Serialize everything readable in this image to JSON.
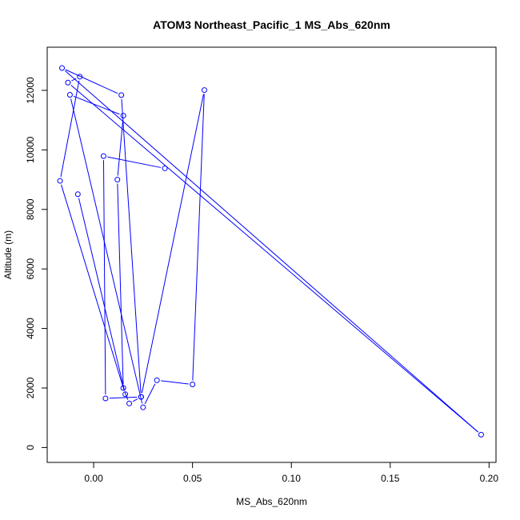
{
  "chart_data": {
    "type": "line",
    "title": "ATOM3 Northeast_Pacific_1 MS_Abs_620nm",
    "xlabel": "MS_Abs_620nm",
    "ylabel": "Altitude (m)",
    "xlim": [
      -0.0235,
      0.2035
    ],
    "ylim": [
      -500,
      13450
    ],
    "x_ticks": [
      0.0,
      0.05,
      0.1,
      0.15,
      0.2
    ],
    "x_tick_labels": [
      "0.00",
      "0.05",
      "0.10",
      "0.15",
      "0.20"
    ],
    "y_ticks": [
      0,
      2000,
      4000,
      6000,
      8000,
      10000,
      12000
    ],
    "y_tick_labels": [
      "0",
      "2000",
      "4000",
      "6000",
      "8000",
      "10000",
      "12000"
    ],
    "series": [
      {
        "color": "#0000ff",
        "marker": "open-circle",
        "x": [
          -0.008,
          0.016,
          -0.017,
          -0.007,
          -0.013,
          0.196,
          -0.016,
          0.014,
          0.024,
          0.018,
          0.015,
          0.012,
          0.015,
          -0.012,
          0.025,
          0.032,
          0.05,
          0.056,
          0.024,
          0.006,
          0.005,
          0.036
        ],
        "y": [
          8510,
          1790,
          8960,
          12460,
          12260,
          430,
          12750,
          11840,
          1700,
          1480,
          2000,
          9000,
          11150,
          11850,
          1350,
          2260,
          2120,
          12010,
          1700,
          1650,
          9790,
          9380
        ]
      }
    ]
  }
}
